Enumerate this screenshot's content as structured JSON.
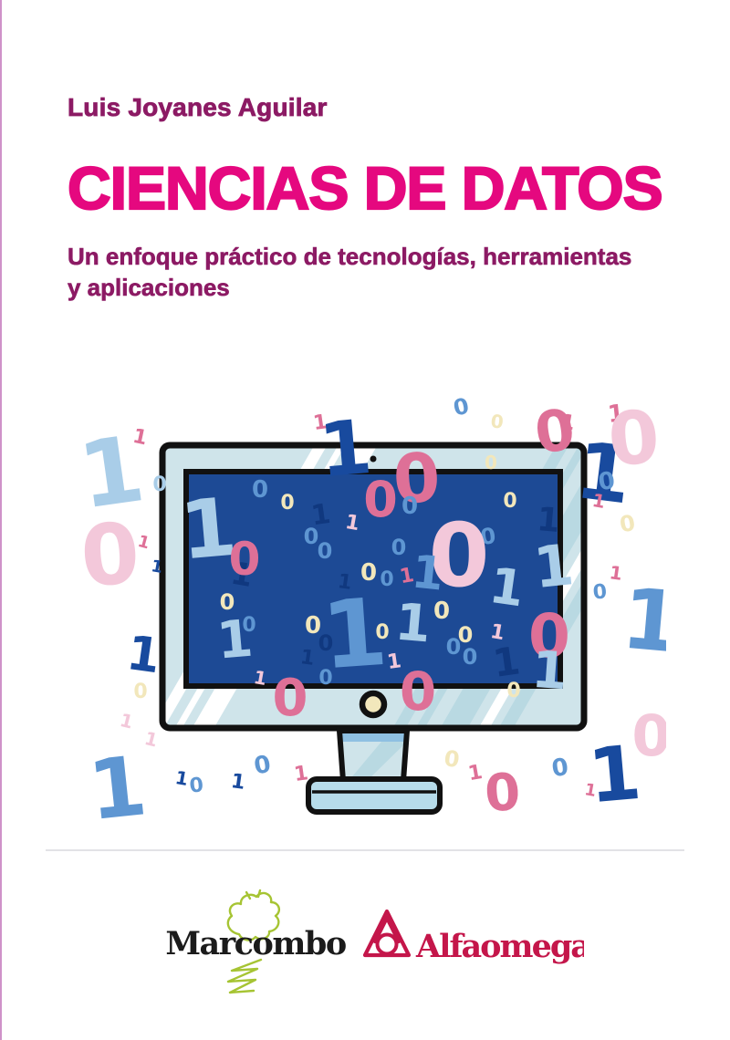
{
  "cover": {
    "author": "Luis Joyanes Aguilar",
    "title": "CIENCIAS DE DATOS",
    "subtitle_line1": "Un enfoque práctico de tecnologías, herramientas",
    "subtitle_line2": "y aplicaciones",
    "colors": {
      "author_text": "#8c1a64",
      "title_text": "#e5087f",
      "subtitle_text": "#8c1a64",
      "left_edge_line": "#c77fc0",
      "divider": "#e2e2e6"
    }
  },
  "illustration": {
    "monitor": {
      "frame_fill": "#cfe4ea",
      "screen_fill": "#1d4a95",
      "stripe_fill": "#b9d9e2",
      "stand_fill": "#cfe4ea",
      "stand_band_fill": "#8fc0e2",
      "base_fill": "#b7dcea",
      "button_fill": "#f2e7bb",
      "outline": "#111111"
    },
    "palette": {
      "navy": "#184a9e",
      "deep": "#10387f",
      "blue": "#5e96d2",
      "lb": "#a9cde8",
      "rose": "#de7097",
      "lp": "#f3c8da",
      "cream": "#f2e7bb"
    },
    "digits": [
      [
        "1",
        127,
        552,
        100,
        "lb",
        -8
      ],
      [
        "1",
        152,
        486,
        22,
        "rose",
        12
      ],
      [
        "0",
        175,
        538,
        22,
        "lb",
        0
      ],
      [
        "0",
        123,
        640,
        92,
        "lp",
        -4
      ],
      [
        "1",
        156,
        600,
        18,
        "rose",
        15
      ],
      [
        "1",
        171,
        627,
        18,
        "navy",
        10
      ],
      [
        "1",
        155,
        735,
        52,
        "navy",
        8
      ],
      [
        "0",
        154,
        765,
        22,
        "cream",
        0
      ],
      [
        "1",
        137,
        797,
        20,
        "lp",
        14
      ],
      [
        "1",
        164,
        817,
        20,
        "lp",
        14
      ],
      [
        "1",
        132,
        895,
        90,
        "blue",
        -6
      ],
      [
        "1",
        198,
        860,
        20,
        "navy",
        10
      ],
      [
        "0",
        216,
        868,
        22,
        "blue",
        -6
      ],
      [
        "1",
        352,
        470,
        22,
        "rose",
        -8
      ],
      [
        "0",
        507,
        454,
        24,
        "blue",
        -12
      ],
      [
        "0",
        544,
        469,
        20,
        "cream",
        6
      ],
      [
        "1",
        621,
        470,
        22,
        "rose",
        10
      ],
      [
        "1",
        676,
        462,
        26,
        "rose",
        -6
      ],
      [
        "1",
        381,
        520,
        82,
        "navy",
        -5
      ],
      [
        "1",
        658,
        548,
        86,
        "navy",
        7
      ],
      [
        "0",
        458,
        550,
        74,
        "rose",
        -3
      ],
      [
        "0",
        611,
        494,
        62,
        "rose",
        -8
      ],
      [
        "0",
        697,
        508,
        80,
        "lp",
        -5
      ],
      [
        "0",
        538,
        514,
        20,
        "cream",
        0
      ],
      [
        "0",
        666,
        536,
        26,
        "blue",
        -8
      ],
      [
        "1",
        655,
        556,
        20,
        "rose",
        10
      ],
      [
        "0",
        689,
        582,
        24,
        "cream",
        -10
      ],
      [
        "1",
        674,
        635,
        20,
        "rose",
        8
      ],
      [
        "0",
        658,
        656,
        22,
        "blue",
        -5
      ],
      [
        "1",
        711,
        712,
        92,
        "blue",
        5
      ],
      [
        "0",
        714,
        828,
        62,
        "lp",
        0
      ],
      [
        "0",
        615,
        850,
        26,
        "blue",
        -8
      ],
      [
        "1",
        646,
        872,
        18,
        "rose",
        10
      ],
      [
        "1",
        676,
        877,
        82,
        "navy",
        -5
      ],
      [
        "0",
        289,
        847,
        26,
        "blue",
        -10
      ],
      [
        "1",
        260,
        864,
        22,
        "navy",
        8
      ],
      [
        "1",
        331,
        855,
        22,
        "rose",
        -8
      ],
      [
        "0",
        494,
        840,
        24,
        "cream",
        8
      ],
      [
        "1",
        522,
        854,
        22,
        "rose",
        -10
      ],
      [
        "0",
        552,
        888,
        56,
        "rose",
        -4
      ],
      [
        "1",
        231,
        610,
        88,
        "lb",
        -5
      ],
      [
        "1",
        263,
        641,
        34,
        "deep",
        10
      ],
      [
        "0",
        285,
        545,
        26,
        "blue",
        0
      ],
      [
        "0",
        315,
        558,
        22,
        "cream",
        0
      ],
      [
        "1",
        353,
        574,
        30,
        "deep",
        -8
      ],
      [
        "0",
        341,
        596,
        24,
        "blue",
        0
      ],
      [
        "1",
        385,
        580,
        22,
        "lp",
        10
      ],
      [
        "0",
        417,
        566,
        54,
        "rose",
        0
      ],
      [
        "0",
        449,
        563,
        26,
        "blue",
        0
      ],
      [
        "0",
        356,
        612,
        24,
        "blue",
        0
      ],
      [
        "0",
        437,
        608,
        24,
        "blue",
        0
      ],
      [
        "0",
        536,
        596,
        24,
        "blue",
        -8
      ],
      [
        "0",
        503,
        642,
        96,
        "lp",
        0
      ],
      [
        "1",
        377,
        645,
        22,
        "deep",
        8
      ],
      [
        "0",
        404,
        636,
        26,
        "cream",
        0
      ],
      [
        "0",
        424,
        642,
        22,
        "blue",
        0
      ],
      [
        "1",
        447,
        638,
        22,
        "rose",
        -10
      ],
      [
        "1",
        467,
        645,
        50,
        "blue",
        6
      ],
      [
        "0",
        268,
        630,
        50,
        "rose",
        0
      ],
      [
        "0",
        249,
        668,
        24,
        "cream",
        0
      ],
      [
        "0",
        273,
        692,
        22,
        "blue",
        0
      ],
      [
        "1",
        259,
        720,
        56,
        "lb",
        -5
      ],
      [
        "1",
        284,
        750,
        20,
        "lp",
        10
      ],
      [
        "0",
        484,
        678,
        26,
        "cream",
        0
      ],
      [
        "1",
        553,
        662,
        54,
        "lb",
        8
      ],
      [
        "0",
        510,
        704,
        24,
        "cream",
        0
      ],
      [
        "0",
        497,
        717,
        24,
        "blue",
        0
      ],
      [
        "0",
        515,
        728,
        24,
        "blue",
        0
      ],
      [
        "1",
        544,
        700,
        22,
        "lp",
        10
      ],
      [
        "1",
        433,
        732,
        22,
        "lp",
        -8
      ],
      [
        "0",
        458,
        778,
        58,
        "rose",
        0
      ],
      [
        "0",
        318,
        784,
        56,
        "rose",
        0
      ],
      [
        "0",
        357,
        713,
        24,
        "deep",
        0
      ],
      [
        "0",
        343,
        694,
        26,
        "cream",
        0
      ],
      [
        "0",
        357,
        750,
        22,
        "blue",
        0
      ],
      [
        "1",
        336,
        728,
        22,
        "deep",
        8
      ],
      [
        "1",
        391,
        730,
        102,
        "blue",
        -4
      ],
      [
        "1",
        451,
        702,
        56,
        "lb",
        5
      ],
      [
        "1",
        557,
        740,
        42,
        "deep",
        -8
      ],
      [
        "0",
        602,
        720,
        66,
        "rose",
        0
      ],
      [
        "1",
        600,
        582,
        36,
        "deep",
        5
      ],
      [
        "0",
        559,
        556,
        22,
        "cream",
        0
      ],
      [
        "1",
        609,
        642,
        62,
        "lb",
        -6
      ],
      [
        "1",
        601,
        754,
        56,
        "lb",
        4
      ],
      [
        "0",
        563,
        764,
        22,
        "cream",
        0
      ],
      [
        "0",
        419,
        700,
        22,
        "cream",
        0
      ]
    ]
  },
  "footer": {
    "marcombo": {
      "label": "Marcombo",
      "text_color": "#1b1b1b",
      "tree_color": "#a6c433"
    },
    "alfaomega": {
      "label": "Alfaomega",
      "color": "#c4164a"
    }
  }
}
